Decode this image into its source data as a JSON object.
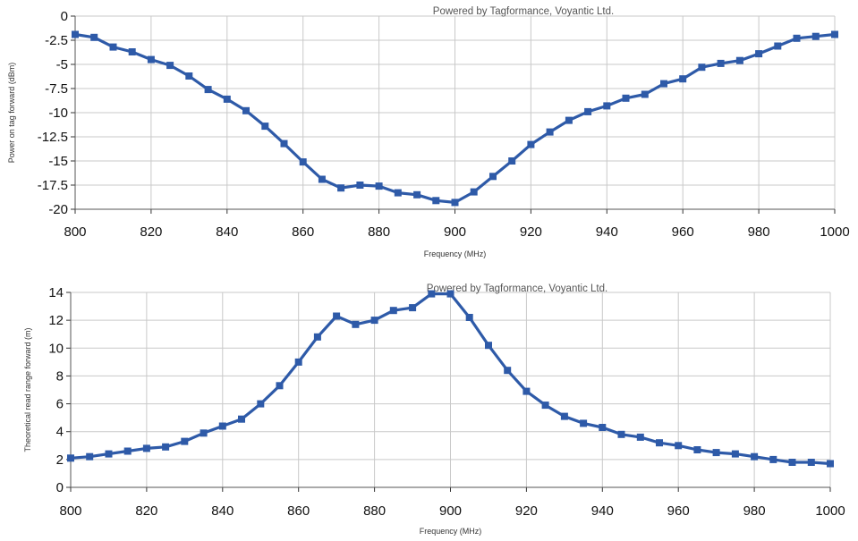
{
  "chart_data": [
    {
      "type": "line",
      "title": "",
      "watermark": "Powered by Tagformance, Voyantic Ltd.",
      "xlabel": "Frequency (MHz)",
      "ylabel": "Power on tag forward (dBm)",
      "xlim": [
        800,
        1000
      ],
      "ylim": [
        -20,
        0
      ],
      "xticks": [
        800,
        820,
        840,
        860,
        880,
        900,
        920,
        940,
        960,
        980,
        1000
      ],
      "xtick_labels": [
        "800",
        "820",
        "840",
        "860",
        "880",
        "900",
        "920",
        "940",
        "960",
        "980",
        "1000"
      ],
      "yticks": [
        0,
        -2.5,
        -5,
        -7.5,
        -10,
        -12.5,
        -15,
        -17.5,
        -20
      ],
      "ytick_labels": [
        "0",
        "-2.5",
        "-5",
        "-7.5",
        "-10",
        "-12.5",
        "-15",
        "-17.5",
        "-20"
      ],
      "grid": true,
      "series": [
        {
          "color": "#2e5aa8",
          "x": [
            800,
            805,
            810,
            815,
            820,
            825,
            830,
            835,
            840,
            845,
            850,
            855,
            860,
            865,
            870,
            875,
            880,
            885,
            890,
            895,
            900,
            905,
            910,
            915,
            920,
            925,
            930,
            935,
            940,
            945,
            950,
            955,
            960,
            965,
            970,
            975,
            980,
            985,
            990,
            995,
            1000
          ],
          "y": [
            -1.9,
            -2.2,
            -3.2,
            -3.7,
            -4.5,
            -5.1,
            -6.2,
            -7.6,
            -8.6,
            -9.8,
            -11.4,
            -13.2,
            -15.1,
            -16.9,
            -17.8,
            -17.5,
            -17.6,
            -18.3,
            -18.5,
            -19.1,
            -19.3,
            -18.2,
            -16.6,
            -15.0,
            -13.3,
            -12.0,
            -10.8,
            -9.9,
            -9.3,
            -8.5,
            -8.1,
            -7.0,
            -6.5,
            -5.3,
            -4.9,
            -4.6,
            -3.9,
            -3.1,
            -2.3,
            -2.1,
            -1.9
          ]
        }
      ]
    },
    {
      "type": "line",
      "title": "",
      "watermark": "Powered by Tagformance, Voyantic Ltd.",
      "xlabel": "Frequency (MHz)",
      "ylabel": "Theoretical read range forward (m)",
      "xlim": [
        800,
        1000
      ],
      "ylim": [
        0,
        14
      ],
      "xticks": [
        800,
        820,
        840,
        860,
        880,
        900,
        920,
        940,
        960,
        980,
        1000
      ],
      "xtick_labels": [
        "800",
        "820",
        "840",
        "860",
        "880",
        "900",
        "920",
        "940",
        "960",
        "980",
        "1000"
      ],
      "yticks": [
        0,
        2,
        4,
        6,
        8,
        10,
        12,
        14
      ],
      "ytick_labels": [
        "0",
        "2",
        "4",
        "6",
        "8",
        "10",
        "12",
        "14"
      ],
      "grid": true,
      "series": [
        {
          "color": "#2e5aa8",
          "x": [
            800,
            805,
            810,
            815,
            820,
            825,
            830,
            835,
            840,
            845,
            850,
            855,
            860,
            865,
            870,
            875,
            880,
            885,
            890,
            895,
            900,
            905,
            910,
            915,
            920,
            925,
            930,
            935,
            940,
            945,
            950,
            955,
            960,
            965,
            970,
            975,
            980,
            985,
            990,
            995,
            1000
          ],
          "y": [
            2.1,
            2.2,
            2.4,
            2.6,
            2.8,
            2.9,
            3.3,
            3.9,
            4.4,
            4.9,
            6.0,
            7.3,
            9.0,
            10.8,
            12.3,
            11.7,
            12.0,
            12.7,
            12.9,
            13.9,
            13.9,
            12.2,
            10.2,
            8.4,
            6.9,
            5.9,
            5.1,
            4.6,
            4.3,
            3.8,
            3.6,
            3.2,
            3.0,
            2.7,
            2.5,
            2.4,
            2.2,
            2.0,
            1.8,
            1.8,
            1.7
          ]
        }
      ]
    }
  ]
}
